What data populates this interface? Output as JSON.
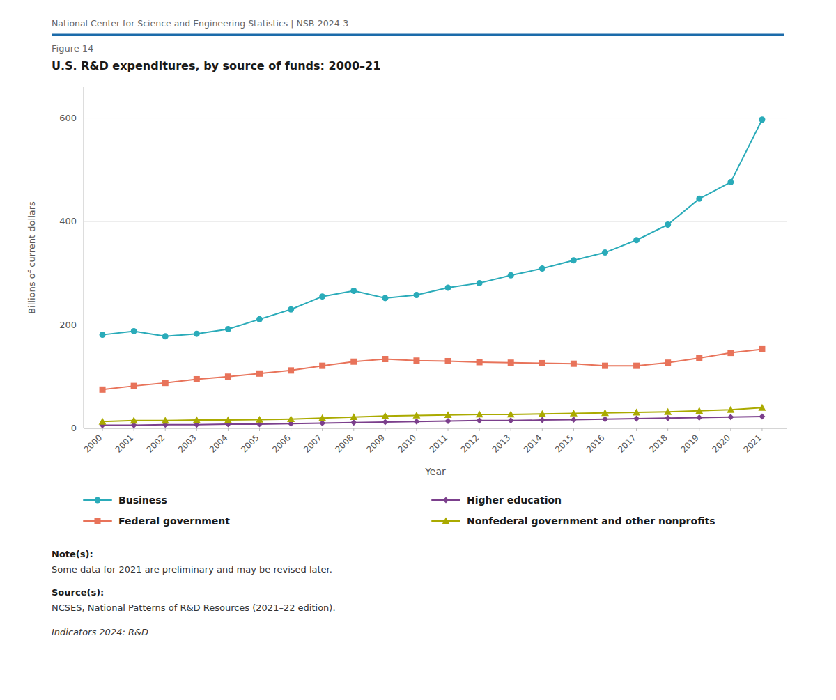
{
  "chart_data": {
    "type": "line",
    "title": "U.S. R&D expenditures, by source of funds: 2000–21",
    "x_label": "Year",
    "y_label": "Billions of current dollars",
    "annotations": [
      "National Center for Science and Engineering Statistics  |  NSB-2024-3",
      "Figure 14",
      "Note(s):",
      "Some data for 2021 are preliminary and may be revised later.",
      "Source(s):",
      "NCSES, National Patterns of R&D Resources (2021–22 edition).",
      "Indicators 2024: R&D"
    ],
    "x": [
      2000,
      2001,
      2002,
      2003,
      2004,
      2005,
      2006,
      2007,
      2008,
      2009,
      2010,
      2011,
      2012,
      2013,
      2014,
      2015,
      2016,
      2017,
      2018,
      2019,
      2020,
      2021
    ],
    "series": [
      {
        "name": "Business",
        "color": "#2AABB9",
        "marker": "circle",
        "values": [
          181,
          188,
          178,
          183,
          192,
          211,
          230,
          255,
          266,
          252,
          258,
          272,
          281,
          296,
          309,
          325,
          340,
          364,
          394,
          444,
          476,
          597
        ]
      },
      {
        "name": "Federal government",
        "color": "#E8735A",
        "marker": "square",
        "values": [
          75,
          82,
          88,
          95,
          100,
          106,
          112,
          121,
          129,
          134,
          131,
          130,
          128,
          127,
          126,
          125,
          121,
          121,
          127,
          136,
          146,
          153
        ]
      },
      {
        "name": "Higher education",
        "color": "#7B3F8C",
        "marker": "diamond",
        "values": [
          6,
          6,
          7,
          7,
          8,
          8,
          9,
          10,
          11,
          12,
          13,
          14,
          15,
          15,
          16,
          17,
          18,
          19,
          20,
          21,
          22,
          23
        ]
      },
      {
        "name": "Nonfederal government and other nonprofits",
        "color": "#AAAA00",
        "marker": "triangle",
        "values": [
          13,
          15,
          15,
          16,
          16,
          17,
          18,
          20,
          22,
          24,
          25,
          26,
          27,
          27,
          28,
          29,
          30,
          31,
          32,
          34,
          36,
          40
        ]
      }
    ],
    "xlim": [
      1999.4,
      2021.8
    ],
    "xticks": [
      2000,
      2001,
      2002,
      2003,
      2004,
      2005,
      2006,
      2007,
      2008,
      2009,
      2010,
      2011,
      2012,
      2013,
      2014,
      2015,
      2016,
      2017,
      2018,
      2019,
      2020,
      2021
    ],
    "ylim": [
      0,
      660
    ],
    "yticks": [
      0,
      200,
      400,
      600
    ],
    "grid": true,
    "legend": "bottom"
  }
}
